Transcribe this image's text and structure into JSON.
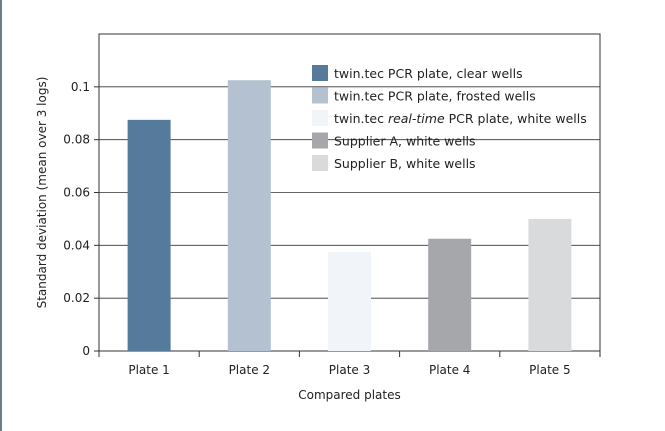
{
  "chart_data": {
    "type": "bar",
    "categories": [
      "Plate 1",
      "Plate 2",
      "Plate 3",
      "Plate 4",
      "Plate 5"
    ],
    "values": [
      0.0875,
      0.1025,
      0.0375,
      0.0425,
      0.05
    ],
    "colors": [
      "#557a9c",
      "#b3c1d0",
      "#f1f4f8",
      "#a6a7ab",
      "#d9dadc"
    ],
    "title": "",
    "xlabel": "Compared plates",
    "ylabel": "Standard deviation (mean over 3 logs)",
    "ylim": [
      0,
      0.12
    ],
    "yticks": [
      0,
      0.02,
      0.04,
      0.06,
      0.08,
      0.1
    ],
    "ytick_labels": [
      "0",
      "0.02",
      "0.04",
      "0.06",
      "0.08",
      "0.1"
    ],
    "grid": true,
    "legend_position": "top-right",
    "legend": [
      {
        "label": "twin.tec PCR plate, clear wells",
        "color": "#557a9c"
      },
      {
        "label": "twin.tec PCR plate, frosted wells",
        "color": "#b3c1d0"
      },
      {
        "label_prefix": "twin.tec ",
        "label_italic": "real-time",
        "label_suffix": " PCR plate, white wells",
        "color": "#f1f4f8"
      },
      {
        "label": "Supplier A, white wells",
        "color": "#a6a7ab"
      },
      {
        "label": "Supplier B, white wells",
        "color": "#d9dadc"
      }
    ]
  }
}
